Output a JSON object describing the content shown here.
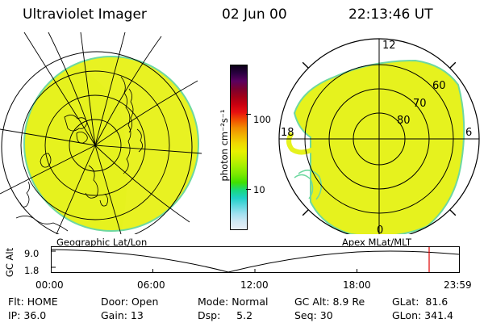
{
  "header": {
    "instrument": "Ultraviolet Imager",
    "date": "02 Jun 00",
    "time": "22:13:46 UT"
  },
  "colorbar": {
    "unit_label": "photon cm⁻²s⁻¹",
    "tick_100": "100",
    "tick_10": "10",
    "colors_top_to_bottom": [
      "#0b0017",
      "#2a0040",
      "#5a0060",
      "#7a0030",
      "#a00018",
      "#c80010",
      "#e81010",
      "#f05000",
      "#f08c00",
      "#f0b400",
      "#f0d800",
      "#e8f000",
      "#c8f000",
      "#a0f000",
      "#78e800",
      "#40e000",
      "#18d880",
      "#20d0c8",
      "#60d8e0",
      "#a0e0f0",
      "#d0e8f4",
      "#e8eef6"
    ]
  },
  "polar_map": {
    "mlt_12": "12",
    "mlt_18": "18",
    "mlt_6": "6",
    "mlt_0": "0",
    "lat_60": "60",
    "lat_70": "70",
    "lat_80": "80"
  },
  "map_labels": {
    "left": "Geographic Lat/Lon",
    "right": "Apex MLat/MLT"
  },
  "altitude_plot": {
    "axis_label": "GC Alt",
    "y_top": "9.0",
    "y_bottom": "1.8",
    "x_ticks": [
      "00:00",
      "06:00",
      "12:00",
      "18:00",
      "23:59"
    ],
    "marker_color": "#e00000"
  },
  "status": {
    "flt": "Flt: HOME",
    "ip": "IP: 36.0",
    "door": "Door: Open",
    "gain": "Gain: 13",
    "mode": "Mode: Normal",
    "dsp": "Dsp:     5.2",
    "gc_alt": "GC Alt: 8.9 Re",
    "seq": "Seq: 30",
    "glat": "GLat:  81.6",
    "glon": "GLon: 341.4"
  },
  "image_colors": {
    "fill": "#e6f21e",
    "edge": "#6ed8a0"
  }
}
